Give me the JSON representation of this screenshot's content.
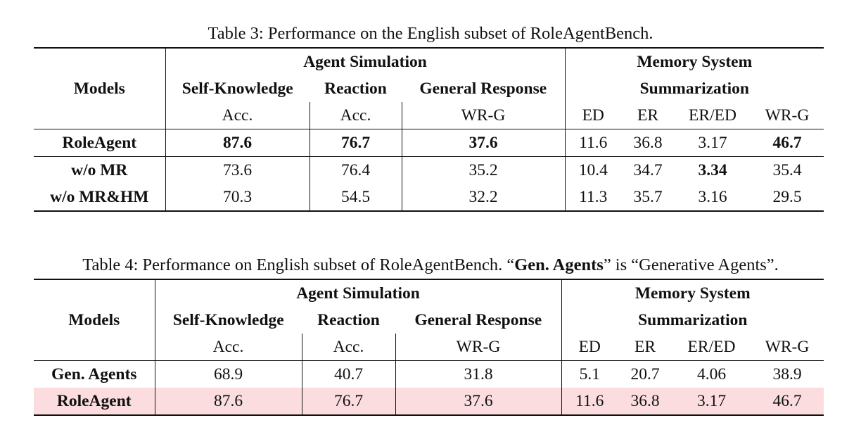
{
  "table3": {
    "caption": "Table 3: Performance on the English subset of RoleAgentBench.",
    "header": {
      "models": "Models",
      "agent_simulation": "Agent Simulation",
      "memory_system": "Memory System",
      "self_knowledge": "Self-Knowledge",
      "reaction": "Reaction",
      "general_response": "General Response",
      "summarization": "Summarization",
      "metrics": [
        "Acc.",
        "Acc.",
        "WR-G",
        "ED",
        "ER",
        "ER/ED",
        "WR-G"
      ]
    },
    "rows": [
      {
        "model": "RoleAgent",
        "values": [
          "87.6",
          "76.7",
          "37.6",
          "11.6",
          "36.8",
          "3.17",
          "46.7"
        ]
      },
      {
        "model": "w/o MR",
        "values": [
          "73.6",
          "76.4",
          "35.2",
          "10.4",
          "34.7",
          "3.34",
          "35.4"
        ]
      },
      {
        "model": "w/o MR&HM",
        "values": [
          "70.3",
          "54.5",
          "32.2",
          "11.3",
          "35.7",
          "3.16",
          "29.5"
        ]
      }
    ]
  },
  "table4": {
    "caption_prefix": "Table 4: Performance on English subset of RoleAgentBench. “",
    "caption_bold": "Gen. Agents",
    "caption_suffix": "” is “Generative Agents”.",
    "header": {
      "models": "Models",
      "agent_simulation": "Agent Simulation",
      "memory_system": "Memory System",
      "self_knowledge": "Self-Knowledge",
      "reaction": "Reaction",
      "general_response": "General Response",
      "summarization": "Summarization",
      "metrics": [
        "Acc.",
        "Acc.",
        "WR-G",
        "ED",
        "ER",
        "ER/ED",
        "WR-G"
      ]
    },
    "rows": [
      {
        "model": "Gen. Agents",
        "values": [
          "68.9",
          "40.7",
          "31.8",
          "5.1",
          "20.7",
          "4.06",
          "38.9"
        ]
      },
      {
        "model": "RoleAgent",
        "values": [
          "87.6",
          "76.7",
          "37.6",
          "11.6",
          "36.8",
          "3.17",
          "46.7"
        ]
      }
    ]
  },
  "colors": {
    "highlight_row": "#fbdcdf",
    "rule": "#111111"
  }
}
